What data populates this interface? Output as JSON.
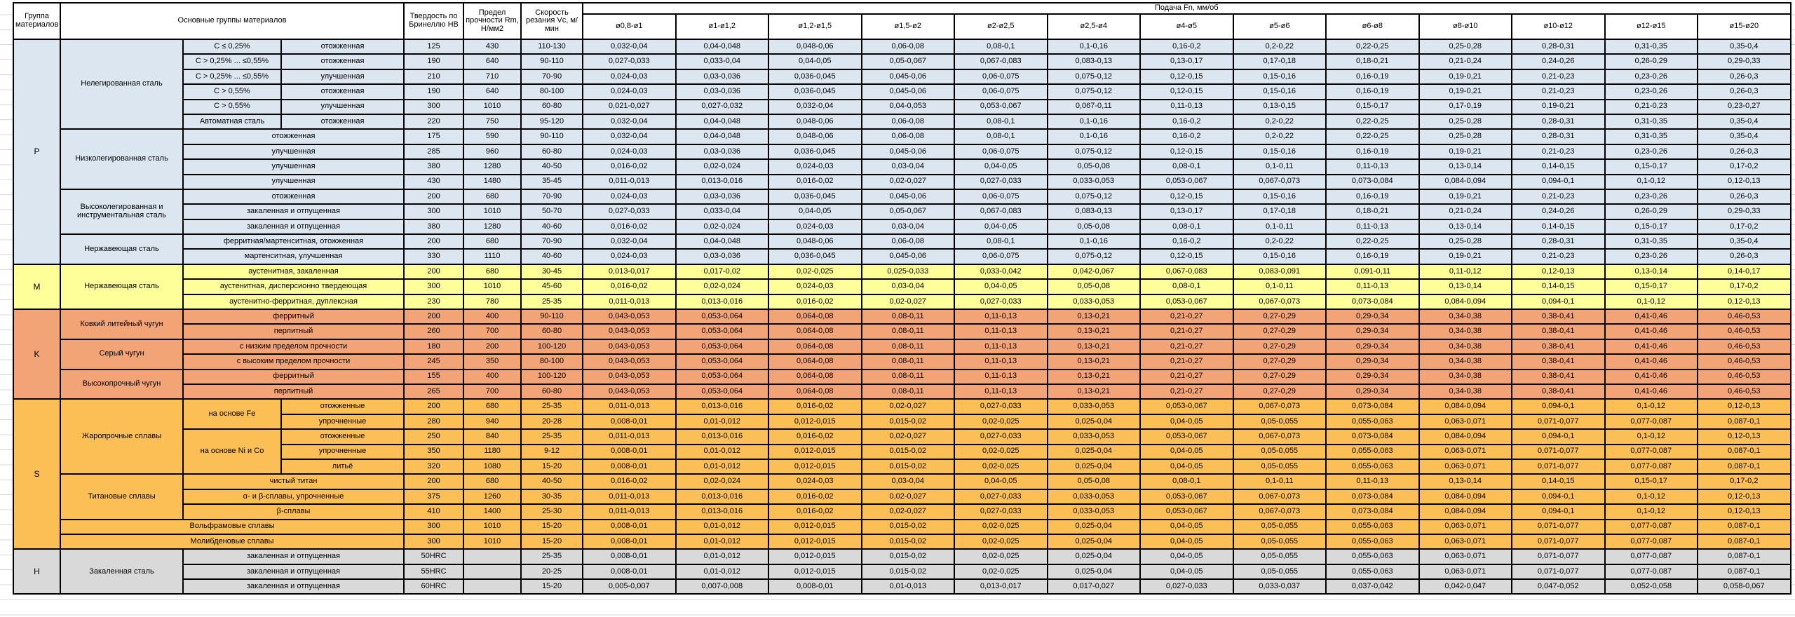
{
  "header": {
    "col_group": "Группа материалов",
    "col_materials": "Основные группы материалов",
    "col_hardness": "Твердость по Бринеллю HB",
    "col_strength": "Предел прочности Rm, Н/мм2",
    "col_speed": "Скорость резания Vc, м/мин",
    "feed_title": "Подача Fn, мм/об",
    "feed_cols": [
      "ø0,8-ø1",
      "ø1-ø1,2",
      "ø1,2-ø1,5",
      "ø1,5-ø2",
      "ø2-ø2,5",
      "ø2,5-ø4",
      "ø4-ø5",
      "ø5-ø6",
      "ø6-ø8",
      "ø8-ø10",
      "ø10-ø12",
      "ø12-ø15",
      "ø15-ø20"
    ]
  },
  "colors": {
    "P": "#dce6f1",
    "M": "#ffff99",
    "K": "#f2a477",
    "S": "#fbbf55",
    "H": "#d9d9d9"
  },
  "feeds": {
    "f1": [
      "0,032-0,04",
      "0,04-0,048",
      "0,048-0,06",
      "0,06-0,08",
      "0,08-0,1",
      "0,1-0,16",
      "0,16-0,2",
      "0,2-0,22",
      "0,22-0,25",
      "0,25-0,28",
      "0,28-0,31",
      "0,31-0,35",
      "0,35-0,4"
    ],
    "f2": [
      "0,027-0,033",
      "0,033-0,04",
      "0,04-0,05",
      "0,05-0,067",
      "0,067-0,083",
      "0,083-0,13",
      "0,13-0,17",
      "0,17-0,18",
      "0,18-0,21",
      "0,21-0,24",
      "0,24-0,26",
      "0,26-0,29",
      "0,29-0,33"
    ],
    "f3": [
      "0,024-0,03",
      "0,03-0,036",
      "0,036-0,045",
      "0,045-0,06",
      "0,06-0,075",
      "0,075-0,12",
      "0,12-0,15",
      "0,15-0,16",
      "0,16-0,19",
      "0,19-0,21",
      "0,21-0,23",
      "0,23-0,26",
      "0,26-0,3"
    ],
    "f4": [
      "0,021-0,027",
      "0,027-0,032",
      "0,032-0,04",
      "0,04-0,053",
      "0,053-0,067",
      "0,067-0,11",
      "0,11-0,13",
      "0,13-0,15",
      "0,15-0,17",
      "0,17-0,19",
      "0,19-0,21",
      "0,21-0,23",
      "0,23-0,27"
    ],
    "f5": [
      "0,016-0,02",
      "0,02-0,024",
      "0,024-0,03",
      "0,03-0,04",
      "0,04-0,05",
      "0,05-0,08",
      "0,08-0,1",
      "0,1-0,11",
      "0,11-0,13",
      "0,13-0,14",
      "0,14-0,15",
      "0,15-0,17",
      "0,17-0,2"
    ],
    "f6": [
      "0,011-0,013",
      "0,013-0,016",
      "0,016-0,02",
      "0,02-0,027",
      "0,027-0,033",
      "0,033-0,053",
      "0,053-0,067",
      "0,067-0,073",
      "0,073-0,084",
      "0,084-0,094",
      "0,094-0,1",
      "0,1-0,12",
      "0,12-0,13"
    ],
    "f7": [
      "0,013-0,017",
      "0,017-0,02",
      "0,02-0,025",
      "0,025-0,033",
      "0,033-0,042",
      "0,042-0,067",
      "0,067-0,083",
      "0,083-0,091",
      "0,091-0,11",
      "0,11-0,12",
      "0,12-0,13",
      "0,13-0,14",
      "0,14-0,17"
    ],
    "f8": [
      "0,043-0,053",
      "0,053-0,064",
      "0,064-0,08",
      "0,08-0,11",
      "0,11-0,13",
      "0,13-0,21",
      "0,21-0,27",
      "0,27-0,29",
      "0,29-0,34",
      "0,34-0,38",
      "0,38-0,41",
      "0,41-0,46",
      "0,46-0,53"
    ],
    "f9": [
      "0,008-0,01",
      "0,01-0,012",
      "0,012-0,015",
      "0,015-0,02",
      "0,02-0,025",
      "0,025-0,04",
      "0,04-0,05",
      "0,05-0,055",
      "0,055-0,063",
      "0,063-0,071",
      "0,071-0,077",
      "0,077-0,087",
      "0,087-0,1"
    ],
    "f10": [
      "0,005-0,007",
      "0,007-0,008",
      "0,008-0,01",
      "0,01-0,013",
      "0,013-0,017",
      "0,017-0,027",
      "0,027-0,033",
      "0,033-0,037",
      "0,037-0,042",
      "0,042-0,047",
      "0,047-0,052",
      "0,052-0,058",
      "0,058-0,067"
    ]
  },
  "rows": [
    {
      "group": {
        "label": "P",
        "span": 15
      },
      "cat": {
        "label": "Нелегированная сталь",
        "span": 6
      },
      "sub1": "C ≤ 0,25%",
      "sub2": "отожженная",
      "hb": "125",
      "rm": "430",
      "vc": "110-130",
      "feed": "f1"
    },
    {
      "sub1": "C > 0,25% ... ≤0,55%",
      "sub2": "отожженная",
      "hb": "190",
      "rm": "640",
      "vc": "90-110",
      "feed": "f2"
    },
    {
      "sub1": "C > 0,25% ... ≤0,55%",
      "sub2": "улучшенная",
      "hb": "210",
      "rm": "710",
      "vc": "70-90",
      "feed": "f3"
    },
    {
      "sub1": "C > 0,55%",
      "sub2": "отожженная",
      "hb": "190",
      "rm": "640",
      "vc": "80-100",
      "feed": "f3"
    },
    {
      "sub1": "C > 0,55%",
      "sub2": "улучшенная",
      "hb": "300",
      "rm": "1010",
      "vc": "60-80",
      "feed": "f4"
    },
    {
      "sub1": "Автоматная сталь",
      "sub2": "отожженная",
      "hb": "220",
      "rm": "750",
      "vc": "95-120",
      "feed": "f1"
    },
    {
      "cat": {
        "label": "Низколегированная сталь",
        "span": 4
      },
      "subw": "отожженная",
      "hb": "175",
      "rm": "590",
      "vc": "90-110",
      "feed": "f1"
    },
    {
      "subw": "улучшенная",
      "hb": "285",
      "rm": "960",
      "vc": "60-80",
      "feed": "f3"
    },
    {
      "subw": "улучшенная",
      "hb": "380",
      "rm": "1280",
      "vc": "40-50",
      "feed": "f5"
    },
    {
      "subw": "улучшенная",
      "hb": "430",
      "rm": "1480",
      "vc": "35-45",
      "feed": "f6"
    },
    {
      "cat": {
        "label": "Высоколегированная и инструментальная сталь",
        "span": 3
      },
      "subw": "отожженная",
      "hb": "200",
      "rm": "680",
      "vc": "70-90",
      "feed": "f3"
    },
    {
      "subw": "закаленная и отпущенная",
      "hb": "300",
      "rm": "1010",
      "vc": "50-70",
      "feed": "f2"
    },
    {
      "subw": "закаленная и отпущенная",
      "hb": "380",
      "rm": "1280",
      "vc": "40-60",
      "feed": "f5"
    },
    {
      "cat": {
        "label": "Нержавеющая сталь",
        "span": 2
      },
      "subw": "ферритная/мартенситная, отожженная",
      "hb": "200",
      "rm": "680",
      "vc": "70-90",
      "feed": "f1"
    },
    {
      "subw": "мартенситная, улучшенная",
      "hb": "330",
      "rm": "1110",
      "vc": "40-60",
      "feed": "f3"
    },
    {
      "group": {
        "label": "M",
        "span": 3
      },
      "cat": {
        "label": "Нержавеющая сталь",
        "span": 3
      },
      "subw": "аустенитная, закаленная",
      "hb": "200",
      "rm": "680",
      "vc": "30-45",
      "feed": "f7"
    },
    {
      "subw": "аустенитная, дисперсионно твердеющая",
      "hb": "300",
      "rm": "1010",
      "vc": "45-60",
      "feed": "f5"
    },
    {
      "subw": "аустенитно-ферритная, дуплексная",
      "hb": "230",
      "rm": "780",
      "vc": "25-35",
      "feed": "f6"
    },
    {
      "group": {
        "label": "K",
        "span": 6
      },
      "cat": {
        "label": "Ковкий литейный чугун",
        "span": 2
      },
      "subw": "ферритный",
      "hb": "200",
      "rm": "400",
      "vc": "90-110",
      "feed": "f8"
    },
    {
      "subw": "перлитный",
      "hb": "260",
      "rm": "700",
      "vc": "60-80",
      "feed": "f8"
    },
    {
      "cat": {
        "label": "Серый чугун",
        "span": 2
      },
      "subw": "с низким пределом прочности",
      "hb": "180",
      "rm": "200",
      "vc": "100-120",
      "feed": "f8"
    },
    {
      "subw": "с высоким пределом прочности",
      "hb": "245",
      "rm": "350",
      "vc": "80-100",
      "feed": "f8"
    },
    {
      "cat": {
        "label": "Высокопрочный чугун",
        "span": 2
      },
      "subw": "ферритный",
      "hb": "155",
      "rm": "400",
      "vc": "100-120",
      "feed": "f8"
    },
    {
      "subw": "перлитный",
      "hb": "265",
      "rm": "700",
      "vc": "60-80",
      "feed": "f8"
    },
    {
      "group": {
        "label": "S",
        "span": 10
      },
      "cat": {
        "label": "Жаропрочные сплавы",
        "span": 5
      },
      "sub1span": {
        "label": "на основе Fe",
        "span": 2
      },
      "sub2": "отожженные",
      "hb": "200",
      "rm": "680",
      "vc": "25-35",
      "feed": "f6"
    },
    {
      "sub2": "упрочненные",
      "hb": "280",
      "rm": "940",
      "vc": "20-28",
      "feed": "f9"
    },
    {
      "sub1span": {
        "label": "на основе Ni и Co",
        "span": 3
      },
      "sub2": "отожженные",
      "hb": "250",
      "rm": "840",
      "vc": "25-35",
      "feed": "f6"
    },
    {
      "sub2": "упрочненные",
      "hb": "350",
      "rm": "1180",
      "vc": "9-12",
      "feed": "f9"
    },
    {
      "sub2": "литьё",
      "hb": "320",
      "rm": "1080",
      "vc": "15-20",
      "feed": "f9"
    },
    {
      "cat": {
        "label": "Титановые сплавы",
        "span": 3
      },
      "subw": "чистый титан",
      "hb": "200",
      "rm": "680",
      "vc": "40-50",
      "feed": "f5"
    },
    {
      "subw": "α- и β-сплавы, упрочненные",
      "hb": "375",
      "rm": "1260",
      "vc": "30-35",
      "feed": "f6"
    },
    {
      "subw": "β-сплавы",
      "hb": "410",
      "rm": "1400",
      "vc": "25-30",
      "feed": "f6"
    },
    {
      "wide": "Вольфрамовые сплавы",
      "hb": "300",
      "rm": "1010",
      "vc": "15-20",
      "feed": "f9"
    },
    {
      "wide": "Молибденовые сплавы",
      "hb": "300",
      "rm": "1010",
      "vc": "15-20",
      "feed": "f9"
    },
    {
      "group": {
        "label": "H",
        "span": 3
      },
      "cat": {
        "label": "Закаленная сталь",
        "span": 3
      },
      "subw": "закаленная и отпущенная",
      "hb": "50HRC",
      "rm": "",
      "vc": "25-35",
      "feed": "f9"
    },
    {
      "subw": "закаленная и отпущенная",
      "hb": "55HRC",
      "rm": "",
      "vc": "20-25",
      "feed": "f9"
    },
    {
      "subw": "закаленная и отпущенная",
      "hb": "60HRC",
      "rm": "",
      "vc": "15-20",
      "feed": "f10"
    }
  ]
}
